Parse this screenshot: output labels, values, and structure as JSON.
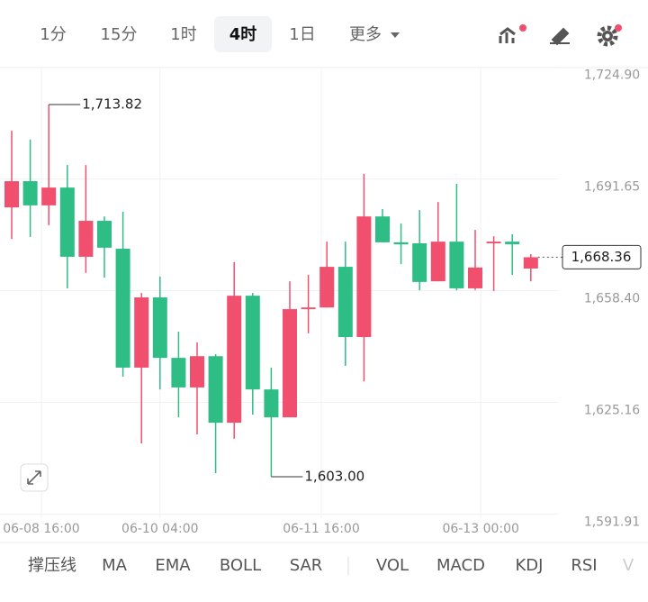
{
  "tabs": [
    "1分",
    "15分",
    "1时",
    "4时",
    "1日",
    "更多"
  ],
  "indicators": [
    "撑压线",
    "MA",
    "EMA",
    "BOLL",
    "SAR",
    "VOL",
    "MACD",
    "KDJ",
    "RSI",
    "V"
  ],
  "chart_data": {
    "type": "candlestick",
    "up_color": "#f0506e",
    "down_color": "#2ebd85",
    "open": [
      1683.2,
      1691.0,
      1683.8,
      1689.1,
      1668.5,
      1679.2,
      1670.9,
      1635.5,
      1656.4,
      1638.4,
      1629.6,
      1638.9,
      1619.1,
      1656.9,
      1629.0,
      1620.7,
      1652.9,
      1653.4,
      1665.5,
      1644.6,
      1680.5,
      1672.8,
      1672.5,
      1661.2,
      1673.0,
      1659.1,
      1672.5,
      1673.0,
      1665.0
    ],
    "high": [
      1706.0,
      1703.4,
      1713.82,
      1695.8,
      1695.8,
      1680.5,
      1681.9,
      1657.7,
      1662.6,
      1646.2,
      1643.0,
      1639.5,
      1666.9,
      1657.7,
      1635.5,
      1661.2,
      1663.1,
      1673.0,
      1673.0,
      1693.2,
      1682.7,
      1678.4,
      1682.4,
      1684.8,
      1690.2,
      1676.5,
      1674.6,
      1675.2,
      1669.3
    ],
    "low": [
      1673.8,
      1674.4,
      1677.9,
      1659.1,
      1663.7,
      1662.3,
      1632.8,
      1612.9,
      1629.0,
      1620.7,
      1615.6,
      1604.1,
      1614.3,
      1621.5,
      1603.0,
      1620.7,
      1645.7,
      1653.4,
      1636.0,
      1631.4,
      1672.8,
      1666.3,
      1658.5,
      1661.2,
      1658.5,
      1658.6,
      1658.3,
      1663.1,
      1661.2
    ],
    "close": [
      1691.0,
      1683.8,
      1689.1,
      1668.5,
      1679.2,
      1671.2,
      1635.5,
      1656.4,
      1638.4,
      1629.6,
      1638.9,
      1619.1,
      1656.9,
      1629.0,
      1620.7,
      1652.9,
      1653.4,
      1665.5,
      1644.6,
      1680.5,
      1672.8,
      1672.2,
      1661.0,
      1673.0,
      1659.1,
      1665.3,
      1673.0,
      1672.2,
      1668.36
    ],
    "ylim": [
      1589.33,
      1726.16
    ],
    "yticks": [
      {
        "value": 1724.9,
        "label": "1,724.90"
      },
      {
        "value": 1691.65,
        "label": "1,691.65"
      },
      {
        "value": 1658.4,
        "label": "1,658.40"
      },
      {
        "value": 1625.16,
        "label": "1,625.16"
      },
      {
        "value": 1591.91,
        "label": "1,591.91"
      }
    ],
    "xlim": [
      -0.5,
      29.5
    ],
    "xticks": [
      {
        "value": 1.6,
        "label": "06-08 16:00"
      },
      {
        "value": 8,
        "label": "06-10 04:00"
      },
      {
        "value": 16.7,
        "label": "06-11 16:00"
      },
      {
        "value": 25.3,
        "label": "06-13 00:00"
      }
    ],
    "annotations": [
      {
        "value": 1713.82,
        "label": "1,713.82",
        "index": 2
      },
      {
        "value": 1603.0,
        "label": "1,603.00",
        "index": 14
      }
    ],
    "last_price": {
      "value": 1668.36,
      "label": "1,668.36"
    },
    "grid": true
  }
}
